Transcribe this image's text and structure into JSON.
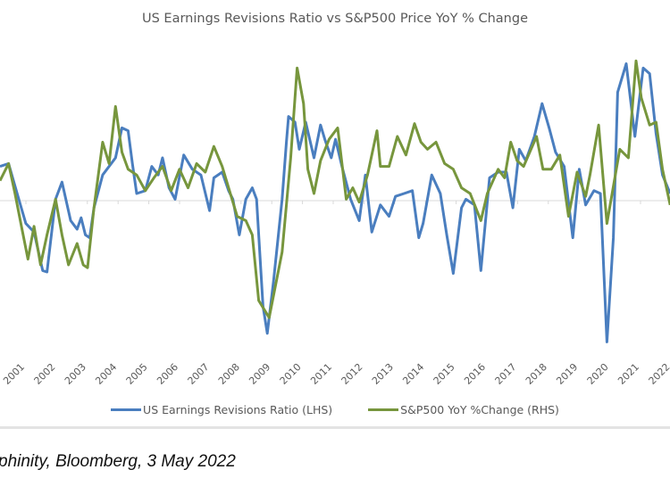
{
  "chart_data": {
    "type": "line",
    "title": "US Earnings Revisions Ratio vs S&P500 Price YoY % Change",
    "xlabel": "",
    "ylabel": "",
    "xlim": [
      2000.65,
      2022.46
    ],
    "ylim": [
      -1,
      1
    ],
    "y_units_note_hidden": null,
    "x_ticks": [
      "2001",
      "2002",
      "2003",
      "2004",
      "2005",
      "2006",
      "2007",
      "2008",
      "2009",
      "2010",
      "2011",
      "2012",
      "2013",
      "2014",
      "2015",
      "2016",
      "2017",
      "2018",
      "2019",
      "2020",
      "2021",
      "2022"
    ],
    "grid": false,
    "legend_position": "bottom",
    "series": [
      {
        "name": "US Earnings Revisions Ratio (LHS)",
        "color": "#4a7ebf",
        "x": [
          2000.65,
          2000.93,
          2001.21,
          2001.49,
          2001.76,
          2002.04,
          2002.18,
          2002.46,
          2002.67,
          2002.95,
          2003.16,
          2003.29,
          2003.43,
          2003.57,
          2003.71,
          2003.99,
          2004.41,
          2004.62,
          2004.82,
          2004.96,
          2005.1,
          2005.38,
          2005.59,
          2005.8,
          2005.94,
          2006.15,
          2006.35,
          2006.63,
          2006.91,
          2007.19,
          2007.47,
          2007.61,
          2007.88,
          2008.09,
          2008.23,
          2008.44,
          2008.65,
          2008.86,
          2009.0,
          2009.21,
          2009.35,
          2009.55,
          2009.83,
          2009.97,
          2010.04,
          2010.25,
          2010.39,
          2010.6,
          2010.87,
          2011.08,
          2011.22,
          2011.43,
          2011.57,
          2011.78,
          2012.06,
          2012.34,
          2012.54,
          2012.75,
          2013.03,
          2013.31,
          2013.52,
          2013.8,
          2014.07,
          2014.28,
          2014.42,
          2014.7,
          2014.98,
          2015.19,
          2015.4,
          2015.67,
          2015.81,
          2016.09,
          2016.3,
          2016.58,
          2016.86,
          2017.13,
          2017.34,
          2017.55,
          2017.76,
          2018.04,
          2018.29,
          2018.52,
          2018.73,
          2019.01,
          2019.29,
          2019.5,
          2019.71,
          2019.98,
          2020.19,
          2020.4,
          2020.61,
          2020.75,
          2021.03,
          2021.31,
          2021.58,
          2021.79,
          2022.0,
          2022.21,
          2022.46
        ],
        "values": [
          0.24,
          0.26,
          0.05,
          -0.16,
          -0.22,
          -0.49,
          -0.5,
          0.01,
          0.13,
          -0.14,
          -0.2,
          -0.12,
          -0.24,
          -0.26,
          -0.05,
          0.18,
          0.3,
          0.51,
          0.49,
          0.26,
          0.05,
          0.07,
          0.24,
          0.18,
          0.3,
          0.09,
          0.01,
          0.32,
          0.22,
          0.18,
          -0.07,
          0.16,
          0.2,
          0.07,
          0.01,
          -0.24,
          0.01,
          0.09,
          0.01,
          -0.74,
          -0.93,
          -0.57,
          0.01,
          0.41,
          0.59,
          0.55,
          0.36,
          0.55,
          0.3,
          0.53,
          0.43,
          0.3,
          0.43,
          0.24,
          0.01,
          -0.14,
          0.18,
          -0.22,
          -0.03,
          -0.11,
          0.03,
          0.05,
          0.07,
          -0.26,
          -0.16,
          0.18,
          0.05,
          -0.24,
          -0.51,
          -0.05,
          0.01,
          -0.03,
          -0.49,
          0.16,
          0.2,
          0.2,
          -0.05,
          0.36,
          0.28,
          0.45,
          0.68,
          0.51,
          0.34,
          0.24,
          -0.26,
          0.22,
          -0.03,
          0.07,
          0.05,
          -0.99,
          -0.26,
          0.76,
          0.96,
          0.45,
          0.93,
          0.89,
          0.47,
          0.18,
          0.05
        ]
      },
      {
        "name": "S&P500 YoY %Change (RHS)",
        "color": "#77963d",
        "x": [
          2000.65,
          2000.93,
          2001.14,
          2001.35,
          2001.56,
          2001.76,
          2001.97,
          2002.18,
          2002.46,
          2002.67,
          2002.88,
          2003.16,
          2003.36,
          2003.5,
          2003.71,
          2003.99,
          2004.2,
          2004.41,
          2004.62,
          2004.82,
          2005.1,
          2005.38,
          2005.66,
          2005.94,
          2006.22,
          2006.49,
          2006.77,
          2007.05,
          2007.33,
          2007.61,
          2007.88,
          2008.09,
          2008.37,
          2008.65,
          2008.86,
          2009.07,
          2009.41,
          2009.83,
          2010.11,
          2010.32,
          2010.53,
          2010.67,
          2010.87,
          2011.08,
          2011.36,
          2011.64,
          2011.92,
          2012.13,
          2012.34,
          2012.61,
          2012.92,
          2013.03,
          2013.31,
          2013.58,
          2013.86,
          2014.14,
          2014.35,
          2014.56,
          2014.84,
          2015.12,
          2015.4,
          2015.67,
          2015.95,
          2016.3,
          2016.51,
          2016.86,
          2017.07,
          2017.27,
          2017.48,
          2017.69,
          2018.11,
          2018.32,
          2018.59,
          2018.87,
          2019.15,
          2019.43,
          2019.71,
          2019.85,
          2020.13,
          2020.4,
          2020.82,
          2021.1,
          2021.35,
          2021.52,
          2021.79,
          2022.0,
          2022.21,
          2022.46
        ],
        "values": [
          0.14,
          0.26,
          0.05,
          -0.18,
          -0.41,
          -0.18,
          -0.45,
          -0.24,
          0.01,
          -0.24,
          -0.45,
          -0.3,
          -0.45,
          -0.47,
          -0.05,
          0.41,
          0.26,
          0.66,
          0.34,
          0.22,
          0.18,
          0.07,
          0.16,
          0.24,
          0.07,
          0.22,
          0.09,
          0.26,
          0.2,
          0.38,
          0.24,
          0.09,
          -0.11,
          -0.14,
          -0.24,
          -0.7,
          -0.82,
          -0.36,
          0.3,
          0.93,
          0.68,
          0.22,
          0.05,
          0.28,
          0.43,
          0.51,
          0.01,
          0.09,
          -0.01,
          0.18,
          0.49,
          0.24,
          0.24,
          0.45,
          0.32,
          0.54,
          0.41,
          0.36,
          0.41,
          0.26,
          0.22,
          0.09,
          0.05,
          -0.14,
          0.05,
          0.22,
          0.16,
          0.41,
          0.28,
          0.24,
          0.45,
          0.22,
          0.22,
          0.32,
          -0.11,
          0.2,
          0.03,
          0.18,
          0.53,
          -0.16,
          0.36,
          0.3,
          0.98,
          0.72,
          0.53,
          0.55,
          0.22,
          -0.03
        ]
      }
    ]
  },
  "source_text": "phinity, Bloomberg, 3 May 2022"
}
